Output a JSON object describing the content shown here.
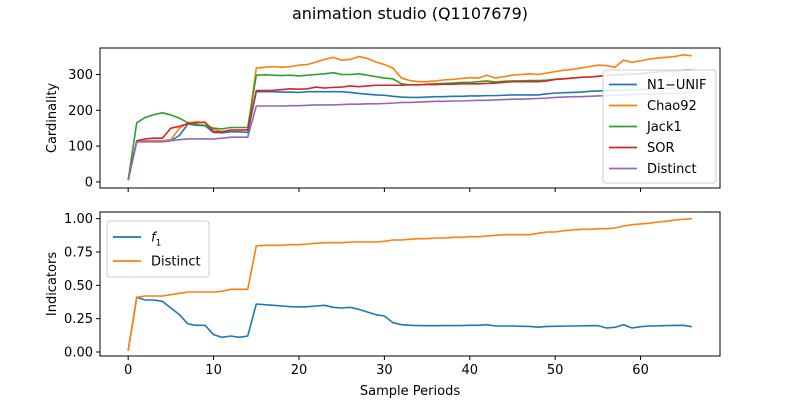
{
  "figure": {
    "title": "animation studio (Q1107679)"
  },
  "chart_data": [
    {
      "type": "line",
      "id": "top",
      "ylabel": "Cardinality",
      "xlabel": "",
      "xlim": [
        -3.3,
        69.3
      ],
      "ylim": [
        -17,
        374
      ],
      "xticks": [
        0,
        10,
        20,
        30,
        40,
        50,
        60
      ],
      "xtick_labels_visible": false,
      "yticks": [
        0,
        100,
        200,
        300
      ],
      "legend_position": "center-right",
      "series": [
        {
          "name": "N1−UNIF",
          "color": "#1f77b4",
          "values": [
            5,
            112,
            113,
            113,
            113,
            115,
            130,
            162,
            158,
            157,
            138,
            137,
            140,
            140,
            138,
            252,
            252,
            252,
            251,
            251,
            250,
            252,
            252,
            252,
            252,
            252,
            250,
            247,
            245,
            243,
            242,
            239,
            237,
            236,
            236,
            237,
            238,
            238,
            239,
            239,
            240,
            240,
            241,
            241,
            242,
            243,
            243,
            243,
            243,
            246,
            248,
            249,
            250,
            251,
            253,
            254,
            255,
            256,
            257,
            258,
            258,
            259,
            260,
            261,
            261,
            262,
            262
          ]
        },
        {
          "name": "Chao92",
          "color": "#ff7f0e",
          "values": [
            5,
            113,
            115,
            115,
            115,
            118,
            150,
            165,
            168,
            165,
            147,
            140,
            145,
            145,
            145,
            318,
            320,
            322,
            320,
            322,
            326,
            328,
            335,
            342,
            348,
            340,
            342,
            350,
            345,
            335,
            328,
            318,
            290,
            283,
            280,
            280,
            282,
            285,
            286,
            289,
            291,
            290,
            298,
            290,
            294,
            298,
            300,
            302,
            300,
            304,
            308,
            312,
            314,
            318,
            322,
            326,
            325,
            320,
            340,
            334,
            338,
            343,
            346,
            348,
            350,
            355,
            352
          ]
        },
        {
          "name": "Jack1",
          "color": "#2ca02c",
          "values": [
            5,
            165,
            180,
            188,
            193,
            187,
            178,
            165,
            160,
            158,
            150,
            148,
            152,
            152,
            152,
            298,
            299,
            298,
            297,
            298,
            296,
            298,
            300,
            302,
            305,
            300,
            300,
            302,
            298,
            294,
            290,
            288,
            274,
            271,
            271,
            273,
            274,
            275,
            276,
            278,
            278,
            280,
            282,
            279,
            281,
            282,
            282,
            283,
            283,
            284,
            287,
            288,
            290,
            292,
            293,
            295,
            297,
            299,
            300,
            302,
            303,
            305,
            307,
            309,
            310,
            312,
            312
          ]
        },
        {
          "name": "SOR",
          "color": "#d62728",
          "values": [
            5,
            115,
            120,
            122,
            122,
            150,
            155,
            163,
            165,
            167,
            140,
            140,
            145,
            145,
            145,
            255,
            255,
            256,
            258,
            260,
            259,
            260,
            265,
            262,
            264,
            265,
            268,
            266,
            268,
            270,
            270,
            270,
            270,
            271,
            271,
            272,
            272,
            273,
            273,
            274,
            274,
            274,
            275,
            276,
            278,
            280,
            280,
            280,
            280,
            282,
            286,
            288,
            290,
            292,
            293,
            295,
            297,
            298,
            300,
            301,
            302,
            305,
            307,
            309,
            310,
            312,
            312
          ]
        },
        {
          "name": "Distinct",
          "color": "#9467bd",
          "values": [
            5,
            112,
            112,
            112,
            112,
            115,
            118,
            120,
            120,
            120,
            120,
            122,
            125,
            125,
            125,
            212,
            212,
            212,
            212,
            213,
            213,
            214,
            215,
            215,
            215,
            216,
            217,
            217,
            218,
            218,
            219,
            220,
            222,
            222,
            223,
            224,
            225,
            225,
            226,
            226,
            227,
            228,
            228,
            229,
            230,
            231,
            231,
            232,
            233,
            234,
            236,
            237,
            238,
            238,
            239,
            240,
            241,
            242,
            243,
            244,
            245,
            245,
            246,
            247,
            248,
            249,
            249
          ]
        }
      ]
    },
    {
      "type": "line",
      "id": "bottom",
      "ylabel": "Indicators",
      "xlabel": "Sample Periods",
      "xlim": [
        -3.3,
        69.3
      ],
      "ylim": [
        -0.03,
        1.05
      ],
      "xticks": [
        0,
        10,
        20,
        30,
        40,
        50,
        60
      ],
      "yticks": [
        0.0,
        0.25,
        0.5,
        0.75,
        1.0
      ],
      "ytick_labels": [
        "0.00",
        "0.25",
        "0.50",
        "0.75",
        "1.00"
      ],
      "legend_position": "upper-left",
      "series": [
        {
          "name": "f1",
          "name_main": "f",
          "name_sub": "1",
          "color": "#1f77b4",
          "values": [
            0.01,
            0.41,
            0.39,
            0.39,
            0.38,
            0.33,
            0.28,
            0.21,
            0.2,
            0.2,
            0.13,
            0.11,
            0.12,
            0.11,
            0.12,
            0.36,
            0.355,
            0.35,
            0.345,
            0.34,
            0.338,
            0.34,
            0.345,
            0.35,
            0.335,
            0.33,
            0.335,
            0.32,
            0.3,
            0.28,
            0.27,
            0.22,
            0.205,
            0.2,
            0.198,
            0.197,
            0.197,
            0.198,
            0.198,
            0.198,
            0.2,
            0.2,
            0.205,
            0.195,
            0.195,
            0.195,
            0.193,
            0.192,
            0.186,
            0.192,
            0.193,
            0.194,
            0.195,
            0.196,
            0.197,
            0.198,
            0.18,
            0.185,
            0.205,
            0.18,
            0.19,
            0.195,
            0.196,
            0.198,
            0.199,
            0.2,
            0.19
          ]
        },
        {
          "name": "Distinct",
          "color": "#ff7f0e",
          "values": [
            0.01,
            0.41,
            0.42,
            0.42,
            0.42,
            0.43,
            0.44,
            0.45,
            0.45,
            0.45,
            0.45,
            0.455,
            0.47,
            0.47,
            0.47,
            0.795,
            0.8,
            0.8,
            0.8,
            0.805,
            0.805,
            0.81,
            0.815,
            0.82,
            0.82,
            0.82,
            0.825,
            0.825,
            0.825,
            0.825,
            0.83,
            0.84,
            0.84,
            0.845,
            0.85,
            0.85,
            0.855,
            0.855,
            0.86,
            0.86,
            0.865,
            0.865,
            0.87,
            0.875,
            0.88,
            0.88,
            0.88,
            0.88,
            0.89,
            0.9,
            0.9,
            0.91,
            0.915,
            0.92,
            0.92,
            0.925,
            0.925,
            0.93,
            0.945,
            0.955,
            0.96,
            0.965,
            0.975,
            0.98,
            0.99,
            0.995,
            1.0
          ]
        }
      ]
    }
  ]
}
